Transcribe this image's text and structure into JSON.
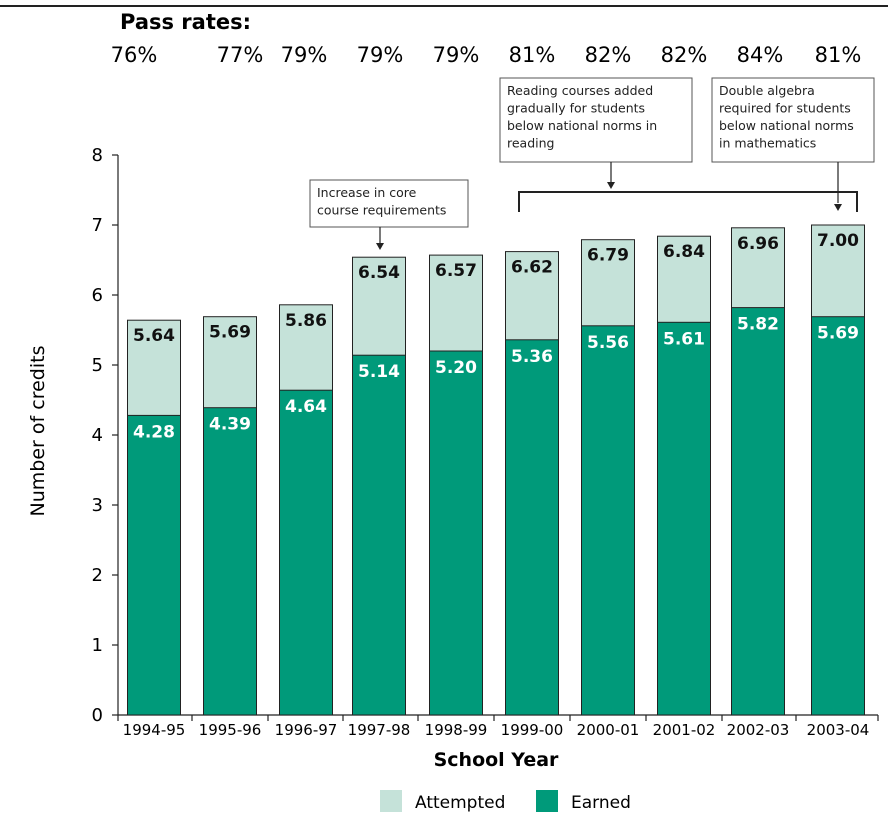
{
  "pass_rates": {
    "title": "Pass rates:",
    "values": [
      "76%",
      "77%",
      "79%",
      "79%",
      "79%",
      "81%",
      "82%",
      "82%",
      "84%",
      "81%"
    ]
  },
  "chart_data": {
    "type": "bar",
    "xlabel": "School Year",
    "ylabel": "Number of credits",
    "ylim": [
      0,
      8
    ],
    "yticks": [
      "0",
      "1",
      "2",
      "3",
      "4",
      "5",
      "6",
      "7",
      "8"
    ],
    "categories": [
      "1994-95",
      "1995-96",
      "1996-97",
      "1997-98",
      "1998-99",
      "1999-00",
      "2000-01",
      "2001-02",
      "2002-03",
      "2003-04"
    ],
    "series": [
      {
        "name": "Attempted",
        "values": [
          5.64,
          5.69,
          5.86,
          6.54,
          6.57,
          6.62,
          6.79,
          6.84,
          6.96,
          7.0
        ],
        "labels": [
          "5.64",
          "5.69",
          "5.86",
          "6.54",
          "6.57",
          "6.62",
          "6.79",
          "6.84",
          "6.96",
          "7.00"
        ],
        "color": "#c5e2d9"
      },
      {
        "name": "Earned",
        "values": [
          4.28,
          4.39,
          4.64,
          5.14,
          5.2,
          5.36,
          5.56,
          5.61,
          5.82,
          5.69
        ],
        "labels": [
          "4.28",
          "4.39",
          "4.64",
          "5.14",
          "5.20",
          "5.36",
          "5.56",
          "5.61",
          "5.82",
          "5.69"
        ],
        "color": "#009a7a"
      }
    ],
    "legend": {
      "placement": "bottom"
    },
    "annotations": [
      {
        "lines": [
          "Increase in core",
          "course requirements"
        ],
        "points_to": "1997-98"
      },
      {
        "lines": [
          "Reading courses added",
          "gradually for students",
          "below national norms in",
          "reading"
        ],
        "spans": [
          "1999-00",
          "2003-04"
        ]
      },
      {
        "lines": [
          "Double algebra",
          "required for students",
          "below national norms",
          "in mathematics"
        ],
        "points_to": "2003-04"
      }
    ]
  }
}
